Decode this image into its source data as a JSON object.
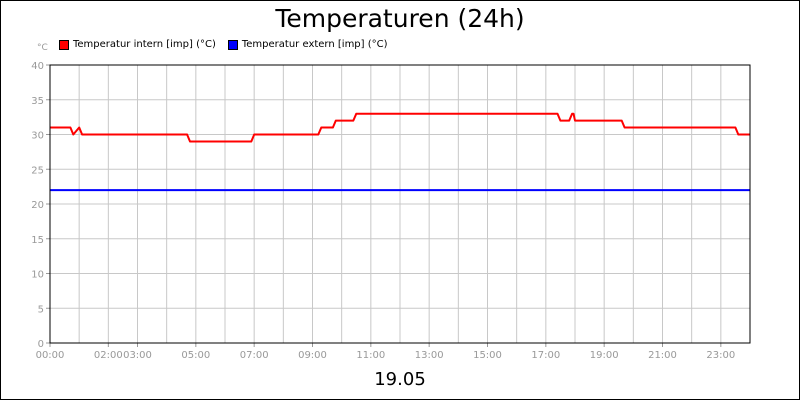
{
  "chart_data": {
    "type": "line",
    "title": "Temperaturen (24h)",
    "unit_label": "°C",
    "date_label": "19.05",
    "ylim": [
      0,
      40
    ],
    "xlim": [
      0,
      24
    ],
    "y_ticks": [
      "0",
      "5",
      "10",
      "15",
      "20",
      "25",
      "30",
      "35",
      "40"
    ],
    "x_ticks": [
      "00:00",
      "02:00",
      "03:00",
      "05:00",
      "07:00",
      "09:00",
      "11:00",
      "13:00",
      "15:00",
      "17:00",
      "19:00",
      "21:00",
      "23:00"
    ],
    "x_tick_hours": [
      0,
      2,
      3,
      5,
      7,
      9,
      11,
      13,
      15,
      17,
      19,
      21,
      23
    ],
    "grid": true,
    "legend_position": "top-left",
    "series": [
      {
        "name": "Temperatur intern [imp] (°C)",
        "color": "#ff0000",
        "x": [
          0,
          0.7,
          0.8,
          1.0,
          1.1,
          4.7,
          4.8,
          6.9,
          7.0,
          9.2,
          9.3,
          9.7,
          9.8,
          10.4,
          10.5,
          17.4,
          17.5,
          17.8,
          17.9,
          17.95,
          18.0,
          19.6,
          19.7,
          23.5,
          23.6,
          24
        ],
        "values": [
          31,
          31,
          30,
          31,
          30,
          30,
          29,
          29,
          30,
          30,
          31,
          31,
          32,
          32,
          33,
          33,
          32,
          32,
          33,
          33,
          32,
          32,
          31,
          31,
          30,
          30
        ]
      },
      {
        "name": "Temperatur extern [imp] (°C)",
        "color": "#0000ff",
        "x": [
          0,
          24
        ],
        "values": [
          22,
          22
        ]
      }
    ]
  }
}
